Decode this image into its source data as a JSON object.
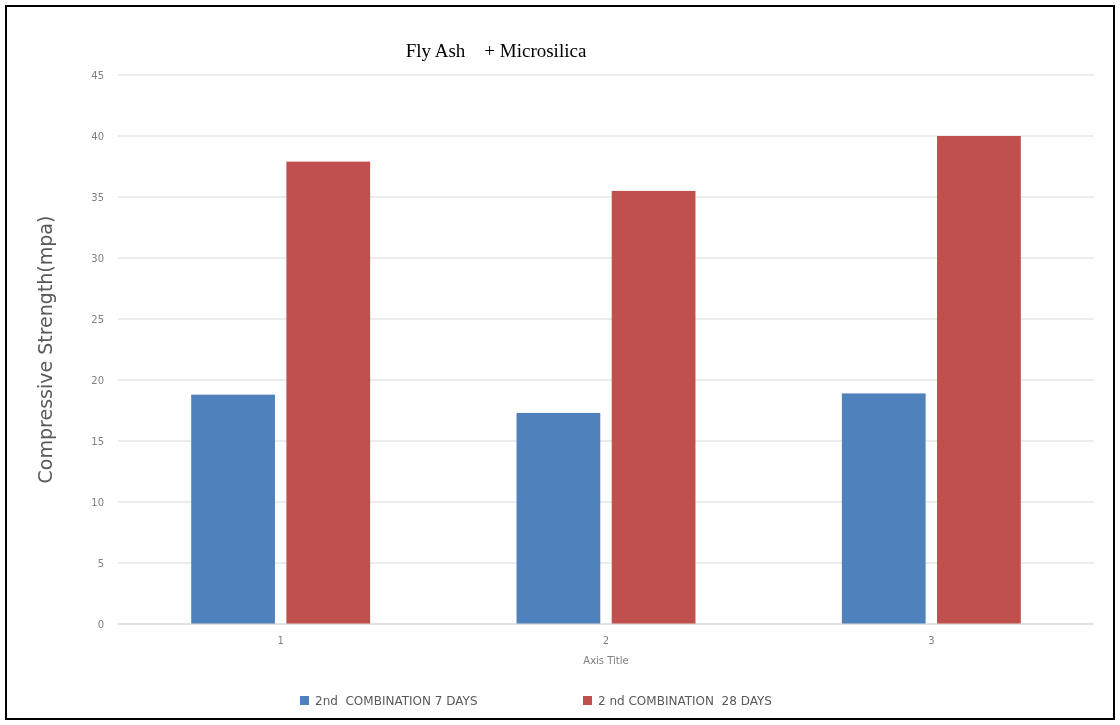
{
  "chart_data": {
    "type": "bar",
    "title": "Fly Ash    + Microsilica",
    "xlabel": "Axis Title",
    "ylabel": "Compressive Strength(mpa)",
    "categories": [
      "1",
      "2",
      "3"
    ],
    "series": [
      {
        "name": "2nd  COMBINATION 7 DAYS",
        "color": "#4f81bd",
        "values": [
          18.8,
          17.3,
          18.9
        ]
      },
      {
        "name": "2 nd COMBINATION  28 DAYS",
        "color": "#c0504d",
        "values": [
          37.9,
          35.5,
          40
        ]
      }
    ],
    "ylim": [
      0,
      45
    ],
    "yticks": [
      0,
      5,
      10,
      15,
      20,
      25,
      30,
      35,
      40,
      45
    ],
    "grid": "y",
    "legend": "bottom"
  }
}
